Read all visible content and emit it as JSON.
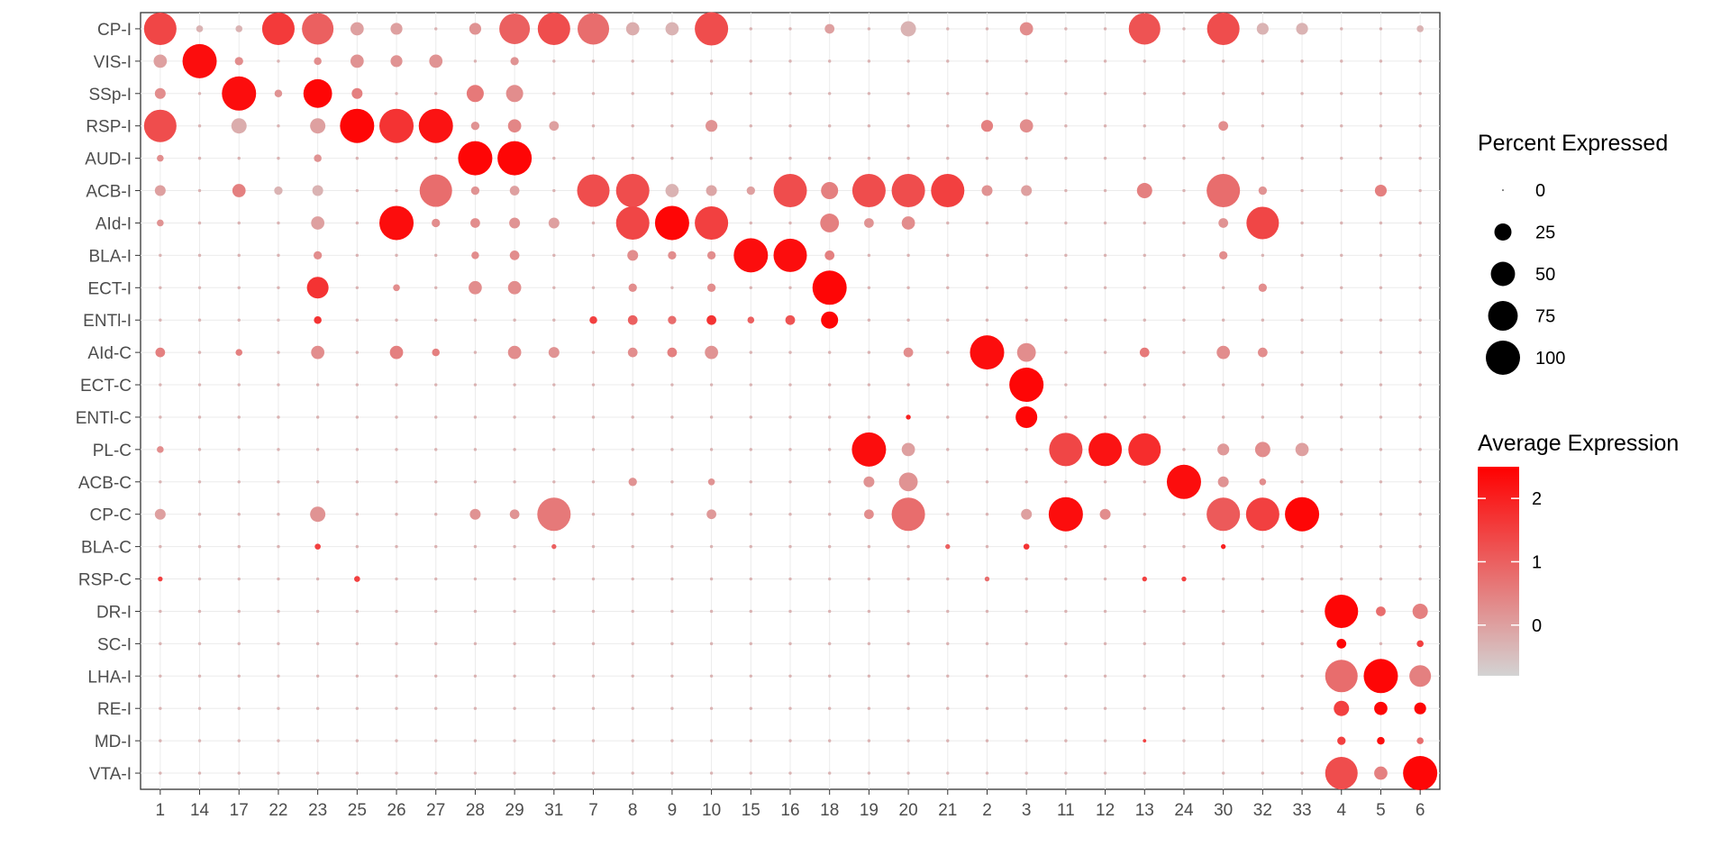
{
  "chart_data": {
    "type": "dotplot",
    "title": "",
    "xlabel": "",
    "ylabel": "",
    "rows": [
      "CP-I",
      "VIS-I",
      "SSp-I",
      "RSP-I",
      "AUD-I",
      "ACB-I",
      "AId-I",
      "BLA-I",
      "ECT-I",
      "ENTl-I",
      "AId-C",
      "ECT-C",
      "ENTl-C",
      "PL-C",
      "ACB-C",
      "CP-C",
      "BLA-C",
      "RSP-C",
      "DR-I",
      "SC-I",
      "LHA-I",
      "RE-I",
      "MD-I",
      "VTA-I"
    ],
    "columns": [
      "1",
      "14",
      "17",
      "22",
      "23",
      "25",
      "26",
      "27",
      "28",
      "29",
      "31",
      "7",
      "8",
      "9",
      "10",
      "15",
      "16",
      "18",
      "19",
      "20",
      "21",
      "2",
      "3",
      "11",
      "12",
      "13",
      "24",
      "30",
      "32",
      "33",
      "4",
      "5",
      "6"
    ],
    "size_legend": {
      "title": "Percent Expressed",
      "values": [
        0,
        25,
        50,
        75,
        100
      ]
    },
    "color_legend": {
      "title": "Average Expression",
      "ticks": [
        0,
        1,
        2
      ],
      "range": [
        -0.8,
        2.5
      ],
      "low_color": "#d3d3d3",
      "high_color": "#ff0000"
    },
    "grid": true,
    "legend_position": "right",
    "points": [
      [
        "CP-I",
        "1",
        90,
        1.4
      ],
      [
        "CP-I",
        "22",
        90,
        1.6
      ],
      [
        "CP-I",
        "23",
        85,
        1.0
      ],
      [
        "CP-I",
        "25",
        15,
        0.0
      ],
      [
        "CP-I",
        "26",
        12,
        0.0
      ],
      [
        "CP-I",
        "28",
        12,
        0.2
      ],
      [
        "CP-I",
        "29",
        80,
        1.0
      ],
      [
        "CP-I",
        "31",
        90,
        1.3
      ],
      [
        "CP-I",
        "7",
        85,
        0.8
      ],
      [
        "CP-I",
        "8",
        15,
        -0.2
      ],
      [
        "CP-I",
        "9",
        15,
        -0.3
      ],
      [
        "CP-I",
        "10",
        95,
        1.3
      ],
      [
        "CP-I",
        "18",
        8,
        0.0
      ],
      [
        "CP-I",
        "20",
        20,
        -0.3
      ],
      [
        "CP-I",
        "3",
        15,
        0.3
      ],
      [
        "CP-I",
        "13",
        85,
        1.2
      ],
      [
        "CP-I",
        "30",
        90,
        1.3
      ],
      [
        "CP-I",
        "32",
        12,
        -0.3
      ],
      [
        "CP-I",
        "33",
        12,
        -0.3
      ],
      [
        "CP-I",
        "14",
        4,
        -0.3
      ],
      [
        "CP-I",
        "17",
        4,
        -0.3
      ],
      [
        "CP-I",
        "6",
        4,
        -0.3
      ],
      [
        "VIS-I",
        "1",
        15,
        0.0
      ],
      [
        "VIS-I",
        "14",
        100,
        2.3
      ],
      [
        "VIS-I",
        "17",
        6,
        0.3
      ],
      [
        "VIS-I",
        "25",
        15,
        0.2
      ],
      [
        "VIS-I",
        "26",
        12,
        0.2
      ],
      [
        "VIS-I",
        "27",
        15,
        0.2
      ],
      [
        "VIS-I",
        "29",
        6,
        0.2
      ],
      [
        "VIS-I",
        "23",
        5,
        0.3
      ],
      [
        "SSp-I",
        "1",
        10,
        0.3
      ],
      [
        "SSp-I",
        "17",
        100,
        2.3
      ],
      [
        "SSp-I",
        "23",
        70,
        2.4
      ],
      [
        "SSp-I",
        "25",
        10,
        0.5
      ],
      [
        "SSp-I",
        "28",
        25,
        0.6
      ],
      [
        "SSp-I",
        "29",
        25,
        0.3
      ],
      [
        "SSp-I",
        "22",
        5,
        0.2
      ],
      [
        "RSP-I",
        "1",
        90,
        1.3
      ],
      [
        "RSP-I",
        "17",
        20,
        -0.2
      ],
      [
        "RSP-I",
        "23",
        20,
        0.0
      ],
      [
        "RSP-I",
        "25",
        100,
        2.4
      ],
      [
        "RSP-I",
        "26",
        100,
        1.7
      ],
      [
        "RSP-I",
        "27",
        100,
        2.2
      ],
      [
        "RSP-I",
        "28",
        6,
        0.2
      ],
      [
        "RSP-I",
        "29",
        15,
        0.4
      ],
      [
        "RSP-I",
        "31",
        8,
        0.0
      ],
      [
        "RSP-I",
        "10",
        12,
        0.2
      ],
      [
        "RSP-I",
        "2",
        12,
        0.5
      ],
      [
        "RSP-I",
        "3",
        15,
        0.3
      ],
      [
        "RSP-I",
        "30",
        8,
        0.3
      ],
      [
        "AUD-I",
        "28",
        100,
        2.4
      ],
      [
        "AUD-I",
        "29",
        100,
        2.4
      ],
      [
        "AUD-I",
        "23",
        5,
        0.2
      ],
      [
        "AUD-I",
        "1",
        4,
        0.3
      ],
      [
        "ACB-I",
        "1",
        10,
        0.0
      ],
      [
        "ACB-I",
        "17",
        15,
        0.5
      ],
      [
        "ACB-I",
        "23",
        10,
        -0.3
      ],
      [
        "ACB-I",
        "27",
        90,
        0.8
      ],
      [
        "ACB-I",
        "29",
        8,
        0.0
      ],
      [
        "ACB-I",
        "7",
        90,
        1.3
      ],
      [
        "ACB-I",
        "8",
        95,
        1.3
      ],
      [
        "ACB-I",
        "9",
        15,
        -0.3
      ],
      [
        "ACB-I",
        "10",
        10,
        -0.1
      ],
      [
        "ACB-I",
        "15",
        6,
        0.0
      ],
      [
        "ACB-I",
        "16",
        95,
        1.3
      ],
      [
        "ACB-I",
        "18",
        25,
        0.5
      ],
      [
        "ACB-I",
        "19",
        95,
        1.3
      ],
      [
        "ACB-I",
        "20",
        95,
        1.3
      ],
      [
        "ACB-I",
        "21",
        95,
        1.5
      ],
      [
        "ACB-I",
        "2",
        10,
        0.2
      ],
      [
        "ACB-I",
        "3",
        10,
        0.0
      ],
      [
        "ACB-I",
        "13",
        20,
        0.5
      ],
      [
        "ACB-I",
        "30",
        95,
        0.8
      ],
      [
        "ACB-I",
        "32",
        6,
        0.2
      ],
      [
        "ACB-I",
        "5",
        12,
        0.5
      ],
      [
        "ACB-I",
        "22",
        6,
        -0.3
      ],
      [
        "ACB-I",
        "28",
        6,
        0.2
      ],
      [
        "AId-I",
        "1",
        4,
        0.2
      ],
      [
        "AId-I",
        "23",
        15,
        0.0
      ],
      [
        "AId-I",
        "26",
        100,
        2.3
      ],
      [
        "AId-I",
        "27",
        6,
        0.3
      ],
      [
        "AId-I",
        "28",
        8,
        0.3
      ],
      [
        "AId-I",
        "29",
        10,
        0.2
      ],
      [
        "AId-I",
        "31",
        10,
        0.0
      ],
      [
        "AId-I",
        "8",
        95,
        1.4
      ],
      [
        "AId-I",
        "9",
        100,
        2.4
      ],
      [
        "AId-I",
        "10",
        95,
        1.5
      ],
      [
        "AId-I",
        "18",
        30,
        0.5
      ],
      [
        "AId-I",
        "19",
        8,
        0.2
      ],
      [
        "AId-I",
        "20",
        15,
        0.3
      ],
      [
        "AId-I",
        "30",
        8,
        0.2
      ],
      [
        "AId-I",
        "32",
        90,
        1.4
      ],
      [
        "BLA-I",
        "23",
        6,
        0.3
      ],
      [
        "BLA-I",
        "15",
        100,
        2.3
      ],
      [
        "BLA-I",
        "16",
        95,
        2.3
      ],
      [
        "BLA-I",
        "18",
        8,
        0.5
      ],
      [
        "BLA-I",
        "8",
        10,
        0.3
      ],
      [
        "BLA-I",
        "9",
        6,
        0.3
      ],
      [
        "BLA-I",
        "10",
        6,
        0.3
      ],
      [
        "BLA-I",
        "29",
        8,
        0.3
      ],
      [
        "BLA-I",
        "28",
        5,
        0.3
      ],
      [
        "BLA-I",
        "30",
        6,
        0.3
      ],
      [
        "ECT-I",
        "23",
        40,
        1.7
      ],
      [
        "ECT-I",
        "18",
        100,
        2.4
      ],
      [
        "ECT-I",
        "28",
        15,
        0.3
      ],
      [
        "ECT-I",
        "29",
        15,
        0.3
      ],
      [
        "ECT-I",
        "8",
        6,
        0.3
      ],
      [
        "ECT-I",
        "10",
        6,
        0.3
      ],
      [
        "ECT-I",
        "32",
        6,
        0.3
      ],
      [
        "ECT-I",
        "26",
        4,
        0.3
      ],
      [
        "ENTl-I",
        "23",
        5,
        1.7
      ],
      [
        "ENTl-I",
        "7",
        5,
        1.5
      ],
      [
        "ENTl-I",
        "8",
        8,
        1.0
      ],
      [
        "ENTl-I",
        "9",
        6,
        0.8
      ],
      [
        "ENTl-I",
        "10",
        8,
        1.7
      ],
      [
        "ENTl-I",
        "15",
        4,
        1.0
      ],
      [
        "ENTl-I",
        "16",
        8,
        1.2
      ],
      [
        "ENTl-I",
        "18",
        25,
        2.4
      ],
      [
        "AId-C",
        "1",
        8,
        0.5
      ],
      [
        "AId-C",
        "23",
        15,
        0.3
      ],
      [
        "AId-C",
        "26",
        15,
        0.5
      ],
      [
        "AId-C",
        "29",
        15,
        0.3
      ],
      [
        "AId-C",
        "31",
        10,
        0.2
      ],
      [
        "AId-C",
        "8",
        8,
        0.3
      ],
      [
        "AId-C",
        "9",
        8,
        0.5
      ],
      [
        "AId-C",
        "10",
        15,
        0.2
      ],
      [
        "AId-C",
        "20",
        8,
        0.3
      ],
      [
        "AId-C",
        "2",
        100,
        2.3
      ],
      [
        "AId-C",
        "3",
        30,
        0.3
      ],
      [
        "AId-C",
        "13",
        8,
        0.6
      ],
      [
        "AId-C",
        "30",
        15,
        0.3
      ],
      [
        "AId-C",
        "32",
        8,
        0.3
      ],
      [
        "AId-C",
        "17",
        4,
        0.5
      ],
      [
        "AId-C",
        "27",
        5,
        0.5
      ],
      [
        "ECT-C",
        "3",
        100,
        2.4
      ],
      [
        "ENTl-C",
        "3",
        40,
        2.4
      ],
      [
        "ENTl-C",
        "20",
        2,
        2.0
      ],
      [
        "PL-C",
        "1",
        4,
        0.3
      ],
      [
        "PL-C",
        "19",
        100,
        2.3
      ],
      [
        "PL-C",
        "20",
        15,
        0.0
      ],
      [
        "PL-C",
        "11",
        95,
        1.4
      ],
      [
        "PL-C",
        "12",
        95,
        2.2
      ],
      [
        "PL-C",
        "13",
        90,
        1.8
      ],
      [
        "PL-C",
        "30",
        12,
        0.1
      ],
      [
        "PL-C",
        "32",
        20,
        0.3
      ],
      [
        "PL-C",
        "33",
        15,
        0.0
      ],
      [
        "ACB-C",
        "19",
        10,
        0.2
      ],
      [
        "ACB-C",
        "20",
        30,
        0.2
      ],
      [
        "ACB-C",
        "24",
        100,
        2.3
      ],
      [
        "ACB-C",
        "30",
        10,
        0.2
      ],
      [
        "ACB-C",
        "8",
        6,
        0.2
      ],
      [
        "ACB-C",
        "10",
        4,
        0.2
      ],
      [
        "ACB-C",
        "32",
        4,
        0.3
      ],
      [
        "CP-C",
        "1",
        10,
        0.0
      ],
      [
        "CP-C",
        "23",
        20,
        0.2
      ],
      [
        "CP-C",
        "28",
        10,
        0.2
      ],
      [
        "CP-C",
        "29",
        8,
        0.2
      ],
      [
        "CP-C",
        "31",
        95,
        0.6
      ],
      [
        "CP-C",
        "10",
        8,
        0.1
      ],
      [
        "CP-C",
        "19",
        8,
        0.3
      ],
      [
        "CP-C",
        "20",
        95,
        0.8
      ],
      [
        "CP-C",
        "3",
        10,
        0.0
      ],
      [
        "CP-C",
        "11",
        100,
        2.3
      ],
      [
        "CP-C",
        "12",
        10,
        0.3
      ],
      [
        "CP-C",
        "30",
        95,
        1.1
      ],
      [
        "CP-C",
        "32",
        95,
        1.5
      ],
      [
        "CP-C",
        "33",
        100,
        2.4
      ],
      [
        "BLA-C",
        "23",
        3,
        1.5
      ],
      [
        "BLA-C",
        "3",
        3,
        1.7
      ],
      [
        "BLA-C",
        "30",
        2,
        2.0
      ],
      [
        "BLA-C",
        "31",
        2,
        1.0
      ],
      [
        "BLA-C",
        "21",
        2,
        1.0
      ],
      [
        "RSP-C",
        "1",
        2,
        1.5
      ],
      [
        "RSP-C",
        "25",
        3,
        1.5
      ],
      [
        "RSP-C",
        "13",
        2,
        1.5
      ],
      [
        "RSP-C",
        "24",
        2,
        1.5
      ],
      [
        "RSP-C",
        "2",
        2,
        0.8
      ],
      [
        "DR-I",
        "4",
        95,
        2.4
      ],
      [
        "DR-I",
        "5",
        8,
        0.8
      ],
      [
        "DR-I",
        "6",
        20,
        0.5
      ],
      [
        "SC-I",
        "4",
        8,
        2.4
      ],
      [
        "SC-I",
        "6",
        4,
        1.5
      ],
      [
        "LHA-I",
        "4",
        90,
        0.8
      ],
      [
        "LHA-I",
        "5",
        100,
        2.4
      ],
      [
        "LHA-I",
        "6",
        40,
        0.5
      ],
      [
        "RE-I",
        "4",
        20,
        1.5
      ],
      [
        "RE-I",
        "5",
        15,
        2.4
      ],
      [
        "RE-I",
        "6",
        12,
        2.4
      ],
      [
        "MD-I",
        "4",
        6,
        1.5
      ],
      [
        "MD-I",
        "5",
        5,
        2.3
      ],
      [
        "MD-I",
        "6",
        4,
        0.8
      ],
      [
        "MD-I",
        "13",
        1,
        1.5
      ],
      [
        "VTA-I",
        "4",
        90,
        1.3
      ],
      [
        "VTA-I",
        "5",
        15,
        0.5
      ],
      [
        "VTA-I",
        "6",
        100,
        2.4
      ]
    ]
  }
}
